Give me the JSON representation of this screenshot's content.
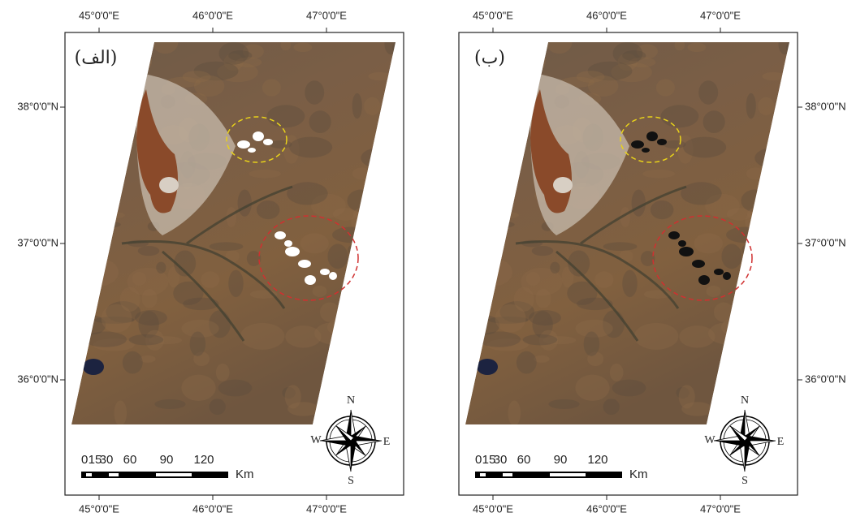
{
  "panels": [
    {
      "label": "(الف)",
      "top_ticks": [
        "45°0'0\"E",
        "46°0'0\"E",
        "47°0'0\"E"
      ],
      "bottom_ticks": [
        "45°0'0\"E",
        "46°0'0\"E",
        "47°0'0\"E"
      ],
      "left_ticks": [
        "38°0'0\"N",
        "37°0'0\"N",
        "36°0'0\"N"
      ],
      "scale_labels": [
        "0",
        "15",
        "30",
        "60",
        "90",
        "120"
      ],
      "scale_unit": "Km",
      "compass": {
        "n": "N",
        "s": "S",
        "e": "E",
        "w": "W"
      }
    },
    {
      "label": "(ب)",
      "top_ticks": [
        "45°0'0\"E",
        "46°0'0\"E",
        "47°0'0\"E"
      ],
      "bottom_ticks": [
        "45°0'0\"E",
        "46°0'0\"E",
        "47°0'0\"E"
      ],
      "right_ticks": [
        "38°0'0\"N",
        "37°0'0\"N",
        "36°0'0\"N"
      ],
      "scale_labels": [
        "0",
        "15",
        "30",
        "60",
        "90",
        "120"
      ],
      "scale_unit": "Km",
      "compass": {
        "n": "N",
        "s": "S",
        "e": "E",
        "w": "W"
      }
    }
  ]
}
